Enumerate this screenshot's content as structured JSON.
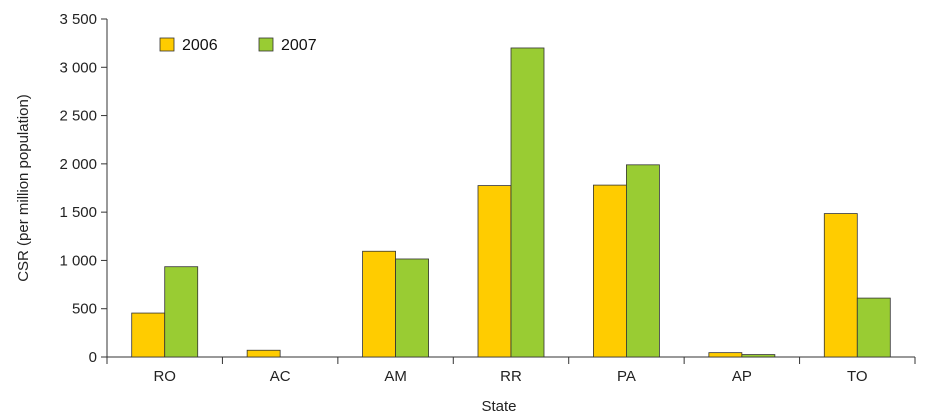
{
  "chart_data": {
    "type": "bar",
    "title": "",
    "xlabel": "State",
    "ylabel": "CSR (per million population)",
    "categories": [
      "RO",
      "AC",
      "AM",
      "RR",
      "PA",
      "AP",
      "TO"
    ],
    "series": [
      {
        "name": "2006",
        "color": "#FFCC00",
        "values": [
          455,
          70,
          1095,
          1775,
          1780,
          45,
          1485
        ]
      },
      {
        "name": "2007",
        "color": "#99CC33",
        "values": [
          935,
          0,
          1015,
          3200,
          1990,
          25,
          610
        ]
      }
    ],
    "ylim": [
      0,
      3500
    ],
    "yticks": [
      0,
      500,
      1000,
      1500,
      2000,
      2500,
      3000,
      3500
    ],
    "ytick_labels": [
      "0",
      "500",
      "1 000",
      "1 500",
      "2 000",
      "2 500",
      "3 000",
      "3 500"
    ],
    "grid": false,
    "legend_position": "top-left"
  }
}
